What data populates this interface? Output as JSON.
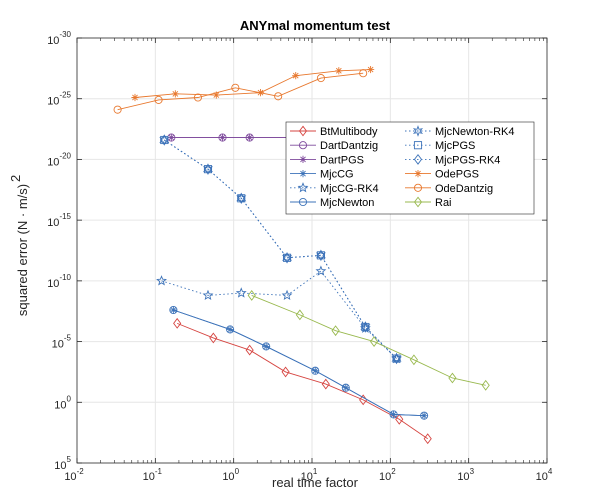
{
  "chart_data": {
    "type": "line",
    "title": "ANYmal momentum test",
    "xlabel": "real time factor",
    "ylabel": "squared error (N · m/s)",
    "ylabel_exponent": "2",
    "x_scale": "log",
    "y_scale": "log",
    "xlim": [
      0.01,
      10000
    ],
    "ylim_top_to_bottom_exponents": [
      -30,
      5
    ],
    "x_ticks": [
      {
        "base": "10",
        "exp": "-2"
      },
      {
        "base": "10",
        "exp": "-1"
      },
      {
        "base": "10",
        "exp": "0"
      },
      {
        "base": "10",
        "exp": "1"
      },
      {
        "base": "10",
        "exp": "2"
      },
      {
        "base": "10",
        "exp": "3"
      },
      {
        "base": "10",
        "exp": "4"
      }
    ],
    "y_ticks": [
      {
        "base": "10",
        "exp": "-30"
      },
      {
        "base": "10",
        "exp": "-25"
      },
      {
        "base": "10",
        "exp": "-20"
      },
      {
        "base": "10",
        "exp": "-15"
      },
      {
        "base": "10",
        "exp": "-10"
      },
      {
        "base": "10",
        "exp": "-5"
      },
      {
        "base": "10",
        "exp": "0"
      },
      {
        "base": "10",
        "exp": "5"
      }
    ],
    "grid": true,
    "legend_position": "upper-right inside",
    "series": [
      {
        "name": "BtMultibody",
        "color": "#d64541",
        "marker": "diamond",
        "dash": "solid",
        "x": [
          0.19,
          0.55,
          1.6,
          4.6,
          15,
          45,
          130,
          300
        ],
        "y": [
          -6.5,
          -5.3,
          -4.3,
          -2.5,
          -1.5,
          -0.2,
          1.4,
          3.0
        ]
      },
      {
        "name": "DartDantzig",
        "color": "#7e4a9c",
        "marker": "circle",
        "dash": "solid",
        "x": [
          0.16,
          0.72,
          1.6,
          5.6,
          18,
          75,
          185
        ],
        "y": [
          -21.8,
          -21.8,
          -21.8,
          -21.8,
          -21.9,
          -22.0,
          -22.2
        ]
      },
      {
        "name": "DartPGS",
        "color": "#7e4a9c",
        "marker": "asterisk",
        "dash": "solid",
        "x": [
          0.16,
          0.72,
          1.6,
          5.6,
          18,
          75,
          185
        ],
        "y": [
          -21.8,
          -21.8,
          -21.8,
          -21.8,
          -21.9,
          -22.0,
          -22.2
        ]
      },
      {
        "name": "MjcCG",
        "color": "#3d73b9",
        "marker": "asterisk",
        "dash": "solid",
        "x": [
          0.17,
          0.9,
          2.6,
          11,
          27,
          110,
          270
        ],
        "y": [
          -7.6,
          -6.0,
          -4.6,
          -2.6,
          -1.2,
          1.0,
          1.1
        ]
      },
      {
        "name": "MjcCG-RK4",
        "color": "#3d73b9",
        "marker": "star",
        "dash": "dotted",
        "x": [
          0.12,
          0.47,
          1.25,
          4.8,
          13,
          48,
          120
        ],
        "y": [
          -10.0,
          -8.8,
          -9.0,
          -8.8,
          -10.8,
          -6.1,
          -3.6
        ]
      },
      {
        "name": "MjcNewton",
        "color": "#3d73b9",
        "marker": "circle",
        "dash": "solid",
        "x": [
          0.17,
          0.9,
          2.6,
          11,
          27,
          110,
          270
        ],
        "y": [
          -7.6,
          -6.0,
          -4.6,
          -2.6,
          -1.2,
          1.0,
          1.1
        ]
      },
      {
        "name": "MjcNewton-RK4",
        "color": "#3d73b9",
        "marker": "hexagram",
        "dash": "dotted",
        "x": [
          0.13,
          0.47,
          1.25,
          4.8,
          13,
          48,
          120
        ],
        "y": [
          -21.6,
          -19.2,
          -16.8,
          -11.9,
          -12.1,
          -6.2,
          -3.6
        ]
      },
      {
        "name": "MjcPGS",
        "color": "#3d73b9",
        "marker": "square",
        "dash": "dotted",
        "x": [
          0.13,
          0.47,
          1.25,
          4.8,
          13,
          48,
          120
        ],
        "y": [
          -21.6,
          -19.2,
          -16.8,
          -11.9,
          -12.1,
          -6.2,
          -3.6
        ]
      },
      {
        "name": "MjcPGS-RK4",
        "color": "#3d73b9",
        "marker": "diamond",
        "dash": "dotted",
        "x": [
          0.13,
          0.47,
          1.25,
          4.8,
          13,
          48,
          120
        ],
        "y": [
          -21.6,
          -19.2,
          -16.8,
          -11.9,
          -12.1,
          -6.2,
          -3.6
        ]
      },
      {
        "name": "OdePGS",
        "color": "#e8782e",
        "marker": "asterisk",
        "dash": "solid",
        "x": [
          0.055,
          0.18,
          0.6,
          2.2,
          6.2,
          22,
          56
        ],
        "y": [
          -25.1,
          -25.4,
          -25.3,
          -25.5,
          -26.9,
          -27.3,
          -27.4
        ]
      },
      {
        "name": "OdeDantzig",
        "color": "#e8782e",
        "marker": "circle",
        "dash": "solid",
        "x": [
          0.033,
          0.11,
          0.35,
          1.05,
          3.7,
          13,
          45
        ],
        "y": [
          -24.1,
          -24.9,
          -25.1,
          -25.9,
          -25.2,
          -26.7,
          -27.1
        ]
      },
      {
        "name": "Rai",
        "color": "#99b94f",
        "marker": "diamond",
        "dash": "solid",
        "x": [
          1.7,
          7,
          20,
          62,
          200,
          620,
          1650
        ],
        "y": [
          -8.8,
          -7.2,
          -5.9,
          -5.0,
          -3.5,
          -2.0,
          -1.4
        ]
      }
    ]
  }
}
